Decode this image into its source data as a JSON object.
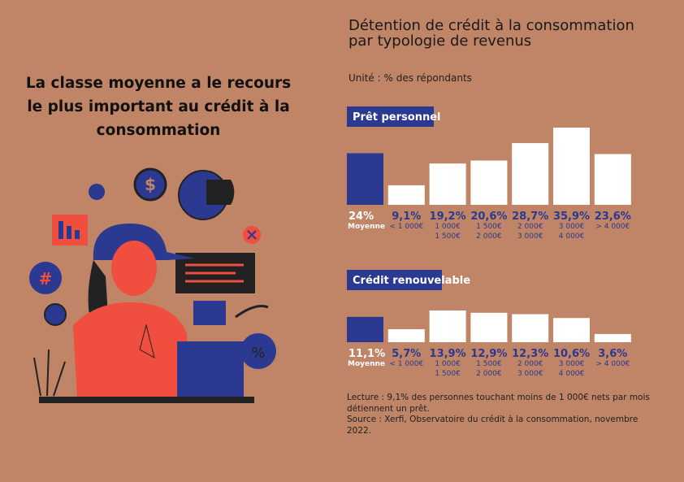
{
  "headline": "La classe moyenne a le recours le plus important au crédit à la consommation",
  "title": "Détention de crédit à la consommation par typologie de revenus",
  "subtitle": "Unité : % des répondants",
  "chart_data": [
    {
      "type": "bar",
      "title": "Prêt personnel",
      "categories": [
        [
          "Moyenne"
        ],
        [
          "< 1 000€"
        ],
        [
          "1 000€",
          "1 500€"
        ],
        [
          "1 500€",
          "2 000€"
        ],
        [
          "2 000€",
          "3 000€"
        ],
        [
          "3 000€",
          "4 000€"
        ],
        [
          "> 4 000€"
        ]
      ],
      "values": [
        24,
        9.1,
        19.2,
        20.6,
        28.7,
        35.9,
        23.6
      ],
      "value_labels": [
        "24%",
        "9,1%",
        "19,2%",
        "20,6%",
        "28,7%",
        "35,9%",
        "23,6%"
      ],
      "colors": [
        "#2b3990",
        "#ffffff",
        "#ffffff",
        "#ffffff",
        "#ffffff",
        "#ffffff",
        "#ffffff"
      ]
    },
    {
      "type": "bar",
      "title": "Crédit renouvelable",
      "categories": [
        [
          "Moyenne"
        ],
        [
          "< 1 000€"
        ],
        [
          "1 000€",
          "1 500€"
        ],
        [
          "1 500€",
          "2 000€"
        ],
        [
          "2 000€",
          "3 000€"
        ],
        [
          "3 000€",
          "4 000€"
        ],
        [
          "> 4 000€"
        ]
      ],
      "values": [
        11.1,
        5.7,
        13.9,
        12.9,
        12.3,
        10.6,
        3.6
      ],
      "value_labels": [
        "11,1%",
        "5,7%",
        "13,9%",
        "12,9%",
        "12,3%",
        "10,6%",
        "3,6%"
      ],
      "colors": [
        "#2b3990",
        "#ffffff",
        "#ffffff",
        "#ffffff",
        "#ffffff",
        "#ffffff",
        "#ffffff"
      ]
    }
  ],
  "notes": [
    "Lecture : 9,1% des personnes touchant moins de 1 000€ nets par mois détiennent un prêt.",
    "Source : Xerfi, Observatoire du crédit à la consommation, novembre 2022."
  ]
}
